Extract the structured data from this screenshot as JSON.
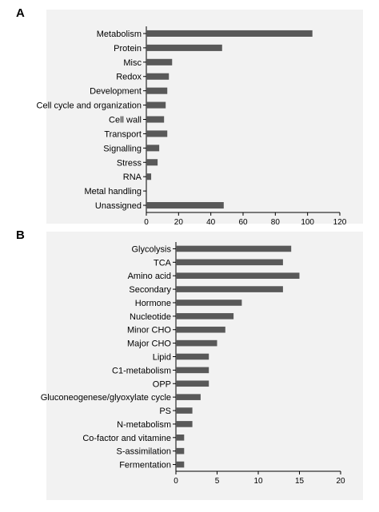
{
  "chart_data": [
    {
      "type": "bar",
      "orientation": "horizontal",
      "panel_label": "A",
      "categories": [
        "Metabolism",
        "Protein",
        "Misc",
        "Redox",
        "Development",
        "Cell cycle and organization",
        "Cell wall",
        "Transport",
        "Signalling",
        "Stress",
        "RNA",
        "Metal handling",
        "Unassigned"
      ],
      "values": [
        103,
        47,
        16,
        14,
        13,
        12,
        11,
        13,
        8,
        7,
        3,
        0,
        48
      ],
      "xlim": [
        0,
        120
      ],
      "xticks": [
        "0",
        "20",
        "40",
        "60",
        "80",
        "100",
        "120"
      ],
      "bar_color": "#595959",
      "grid": false
    },
    {
      "type": "bar",
      "orientation": "horizontal",
      "panel_label": "B",
      "categories": [
        "Glycolysis",
        "TCA",
        "Amino acid",
        "Secondary",
        "Hormone",
        "Nucleotide",
        "Minor CHO",
        "Major CHO",
        "Lipid",
        "C1-metabolism",
        "OPP",
        "Gluconeogenese/glyoxylate cycle",
        "PS",
        "N-metabolism",
        "Co-factor and vitamine",
        "S-assimilation",
        "Fermentation"
      ],
      "values": [
        14,
        13,
        15,
        13,
        8,
        7,
        6,
        5,
        4,
        4,
        4,
        3,
        2,
        2,
        1,
        1,
        1
      ],
      "xlim": [
        0,
        20
      ],
      "xticks": [
        "0",
        "5",
        "10",
        "15",
        "20"
      ],
      "bar_color": "#595959",
      "grid": false
    }
  ]
}
